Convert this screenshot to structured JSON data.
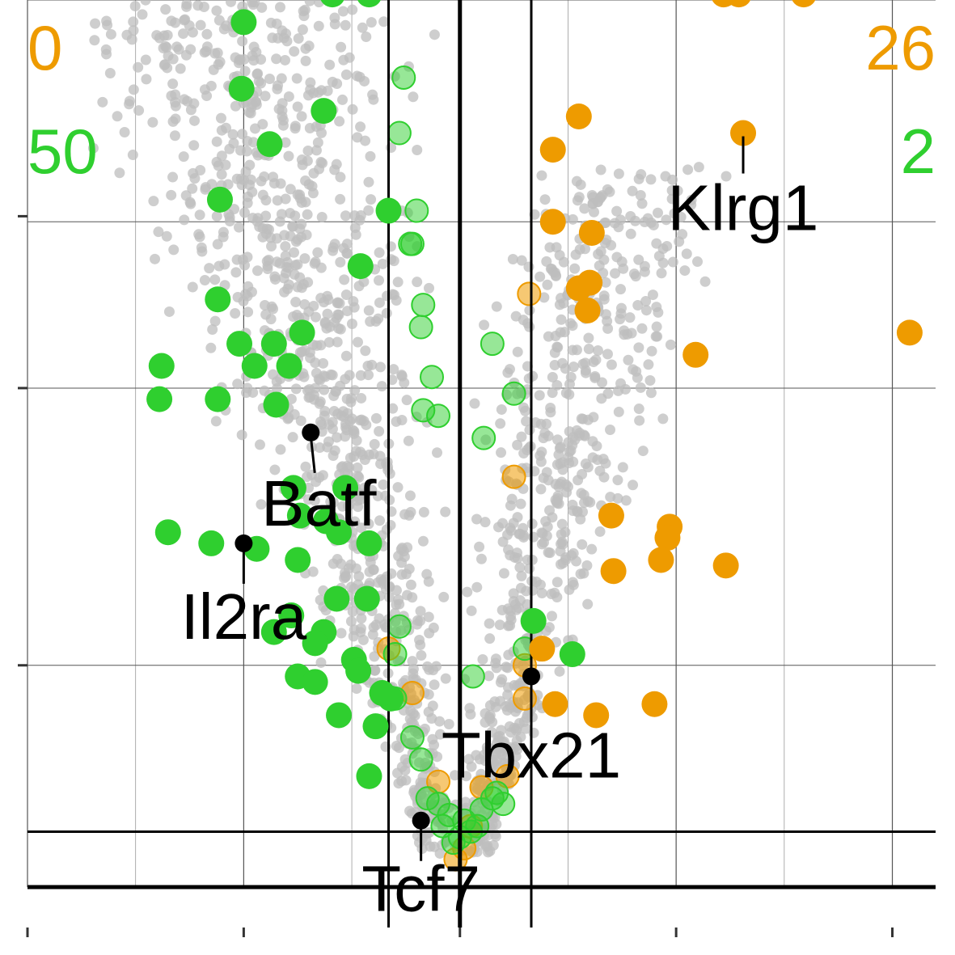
{
  "colors": {
    "background_point": "#bdbdbd",
    "down_point": "#2fcf2f",
    "up_point": "#ee9b00",
    "highlight_point": "#000000",
    "grid": "#555555",
    "axis": "#000000"
  },
  "counts": {
    "top_left": "0",
    "top_right": "26",
    "second_left": "50",
    "second_right": "2"
  },
  "chart_data": {
    "type": "scatter",
    "title": "",
    "xlabel": "",
    "ylabel": "",
    "xlim": [
      -2.0,
      2.2
    ],
    "ylim": [
      0,
      8.0
    ],
    "x_ticks": [
      -2,
      -1,
      0,
      1,
      2
    ],
    "y_ticks": [
      0.5,
      2,
      4.5,
      6,
      8
    ],
    "thresholds": {
      "fold_change_x": [
        -0.33,
        0.33
      ],
      "significance_y": 0.5
    },
    "gene_labels": [
      {
        "name": "Klrg1",
        "x": 1.31,
        "y": 6.8
      },
      {
        "name": "Batf",
        "x": -0.69,
        "y": 4.1
      },
      {
        "name": "Il2ra",
        "x": -1.0,
        "y": 3.1
      },
      {
        "name": "Tbx21",
        "x": 0.33,
        "y": 1.9
      },
      {
        "name": "Tcf7",
        "x": -0.18,
        "y": 0.6
      }
    ],
    "series": [
      {
        "name": "down",
        "points": [
          [
            -0.59,
            8.05
          ],
          [
            -0.42,
            8.05
          ],
          [
            -1.0,
            7.8
          ],
          [
            -1.01,
            7.2
          ],
          [
            -0.63,
            7.0
          ],
          [
            -0.88,
            6.7
          ],
          [
            -1.11,
            6.2
          ],
          [
            -0.33,
            6.1
          ],
          [
            -0.46,
            5.6
          ],
          [
            -1.12,
            5.3
          ],
          [
            -0.73,
            5.0
          ],
          [
            -1.02,
            4.9
          ],
          [
            -0.86,
            4.9
          ],
          [
            -0.95,
            4.7
          ],
          [
            -0.79,
            4.7
          ],
          [
            -1.38,
            4.7
          ],
          [
            -1.39,
            4.4
          ],
          [
            -1.12,
            4.4
          ],
          [
            -0.85,
            4.35
          ],
          [
            -0.77,
            3.6
          ],
          [
            -0.53,
            3.6
          ],
          [
            -0.74,
            3.35
          ],
          [
            -0.62,
            3.3
          ],
          [
            -0.56,
            3.2
          ],
          [
            -0.42,
            3.1
          ],
          [
            -1.35,
            3.2
          ],
          [
            -1.15,
            3.1
          ],
          [
            -0.94,
            3.05
          ],
          [
            -0.75,
            2.95
          ],
          [
            -0.57,
            2.6
          ],
          [
            -0.43,
            2.6
          ],
          [
            -0.78,
            2.45
          ],
          [
            -0.63,
            2.3
          ],
          [
            -0.86,
            2.3
          ],
          [
            -0.67,
            2.2
          ],
          [
            -0.49,
            2.05
          ],
          [
            -0.47,
            1.95
          ],
          [
            -0.75,
            1.9
          ],
          [
            -0.67,
            1.85
          ],
          [
            -0.32,
            1.7
          ],
          [
            -0.36,
            1.75
          ],
          [
            -0.56,
            1.55
          ],
          [
            -0.39,
            1.45
          ],
          [
            -0.42,
            1.0
          ],
          [
            0.34,
            2.4
          ],
          [
            0.52,
            2.1
          ]
        ]
      },
      {
        "name": "down_faded",
        "points": [
          [
            -0.26,
            7.3
          ],
          [
            -0.28,
            6.8
          ],
          [
            -0.2,
            6.1
          ],
          [
            -0.23,
            5.8
          ],
          [
            -0.22,
            5.8
          ],
          [
            -0.17,
            5.25
          ],
          [
            -0.18,
            5.05
          ],
          [
            0.15,
            4.9
          ],
          [
            -0.13,
            4.6
          ],
          [
            -0.17,
            4.3
          ],
          [
            -0.1,
            4.25
          ],
          [
            0.25,
            4.45
          ],
          [
            0.11,
            4.05
          ],
          [
            -0.28,
            2.35
          ],
          [
            -0.3,
            2.1
          ],
          [
            -0.3,
            1.7
          ],
          [
            -0.22,
            1.35
          ],
          [
            -0.18,
            1.15
          ],
          [
            0.06,
            1.9
          ],
          [
            0.3,
            2.15
          ],
          [
            -0.15,
            0.8
          ],
          [
            -0.1,
            0.75
          ],
          [
            -0.05,
            0.65
          ],
          [
            0.02,
            0.6
          ],
          [
            0.1,
            0.7
          ],
          [
            0.15,
            0.8
          ],
          [
            0.17,
            0.85
          ],
          [
            -0.08,
            0.55
          ],
          [
            0.05,
            0.5
          ],
          [
            -0.03,
            0.4
          ],
          [
            0.0,
            0.45
          ],
          [
            0.2,
            0.75
          ],
          [
            0.08,
            0.55
          ]
        ]
      },
      {
        "name": "up",
        "points": [
          [
            1.22,
            8.05
          ],
          [
            1.29,
            8.05
          ],
          [
            1.59,
            8.05
          ],
          [
            1.31,
            6.8
          ],
          [
            0.55,
            6.95
          ],
          [
            0.43,
            6.65
          ],
          [
            0.43,
            6.0
          ],
          [
            0.61,
            5.9
          ],
          [
            0.55,
            5.4
          ],
          [
            0.6,
            5.45
          ],
          [
            0.59,
            5.2
          ],
          [
            2.08,
            5.0
          ],
          [
            1.09,
            4.8
          ],
          [
            0.7,
            3.35
          ],
          [
            0.97,
            3.25
          ],
          [
            0.96,
            3.15
          ],
          [
            0.93,
            2.95
          ],
          [
            0.71,
            2.85
          ],
          [
            1.23,
            2.9
          ],
          [
            0.38,
            2.15
          ],
          [
            0.44,
            1.65
          ],
          [
            0.63,
            1.55
          ],
          [
            0.9,
            1.65
          ]
        ]
      },
      {
        "name": "up_faded",
        "points": [
          [
            0.32,
            5.35
          ],
          [
            0.25,
            3.7
          ],
          [
            -0.33,
            2.15
          ],
          [
            -0.22,
            1.75
          ],
          [
            0.3,
            2.0
          ],
          [
            0.3,
            1.7
          ],
          [
            0.22,
            1.0
          ],
          [
            0.1,
            0.9
          ],
          [
            -0.1,
            0.95
          ],
          [
            0.05,
            0.55
          ],
          [
            0.02,
            0.35
          ],
          [
            -0.02,
            0.25
          ]
        ]
      },
      {
        "name": "highlighted",
        "points": [
          [
            -0.69,
            4.1
          ],
          [
            -1.0,
            3.1
          ],
          [
            0.33,
            1.9
          ],
          [
            -0.18,
            0.6
          ]
        ]
      }
    ]
  }
}
